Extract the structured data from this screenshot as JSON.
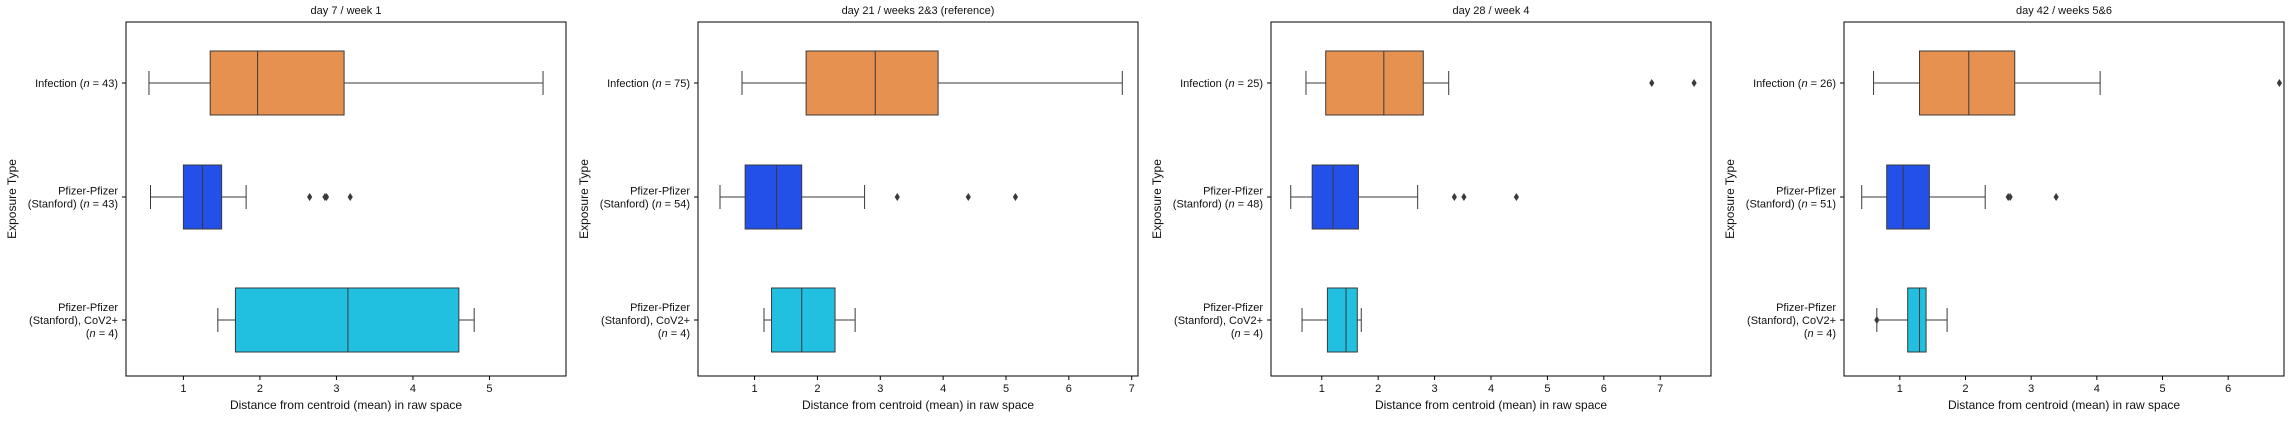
{
  "chart_data": [
    {
      "type": "boxplot",
      "title": "day 7 / week 1",
      "xlabel": "Distance from centroid (mean) in raw space",
      "ylabel": "Exposure Type",
      "xlim": [
        0.25,
        6.0
      ],
      "xticks": [
        1,
        2,
        3,
        4,
        5
      ],
      "categories": [
        {
          "lines": [
            [
              {
                "t": "Infection ("
              },
              {
                "t": "n",
                "i": true
              },
              {
                "t": " = 43)"
              }
            ]
          ]
        },
        {
          "lines": [
            [
              {
                "t": "Pfizer-Pfizer"
              }
            ],
            [
              {
                "t": "(Stanford) ("
              },
              {
                "t": "n",
                "i": true
              },
              {
                "t": " = 43)"
              }
            ]
          ]
        },
        {
          "lines": [
            [
              {
                "t": "Pfizer-Pfizer"
              }
            ],
            [
              {
                "t": "(Stanford), CoV2+"
              }
            ],
            [
              {
                "t": "("
              },
              {
                "t": "n",
                "i": true
              },
              {
                "t": " = 4)"
              }
            ]
          ]
        }
      ],
      "boxes": [
        {
          "color": "#E69150",
          "whislo": 0.55,
          "q1": 1.35,
          "med": 1.97,
          "q3": 3.1,
          "whishi": 5.7,
          "fliers": []
        },
        {
          "color": "#2250E8",
          "whislo": 0.57,
          "q1": 1.0,
          "med": 1.25,
          "q3": 1.5,
          "whishi": 1.82,
          "fliers": [
            2.65,
            2.85,
            2.87,
            3.18
          ]
        },
        {
          "color": "#22C0E0",
          "whislo": 1.45,
          "q1": 1.68,
          "med": 3.15,
          "q3": 4.6,
          "whishi": 4.8,
          "fliers": []
        }
      ]
    },
    {
      "type": "boxplot",
      "title": "day 21 / weeks 2&3 (reference)",
      "xlabel": "Distance from centroid (mean) in raw space",
      "ylabel": "Exposure Type",
      "xlim": [
        0.1,
        7.1
      ],
      "xticks": [
        1,
        2,
        3,
        4,
        5,
        6,
        7
      ],
      "categories": [
        {
          "lines": [
            [
              {
                "t": "Infection ("
              },
              {
                "t": "n",
                "i": true
              },
              {
                "t": " = 75)"
              }
            ]
          ]
        },
        {
          "lines": [
            [
              {
                "t": "Pfizer-Pfizer"
              }
            ],
            [
              {
                "t": "(Stanford) ("
              },
              {
                "t": "n",
                "i": true
              },
              {
                "t": " = 54)"
              }
            ]
          ]
        },
        {
          "lines": [
            [
              {
                "t": "Pfizer-Pfizer"
              }
            ],
            [
              {
                "t": "(Stanford), CoV2+"
              }
            ],
            [
              {
                "t": "("
              },
              {
                "t": "n",
                "i": true
              },
              {
                "t": " = 4)"
              }
            ]
          ]
        }
      ],
      "boxes": [
        {
          "color": "#E69150",
          "whislo": 0.8,
          "q1": 1.82,
          "med": 2.92,
          "q3": 3.92,
          "whishi": 6.85,
          "fliers": []
        },
        {
          "color": "#2250E8",
          "whislo": 0.45,
          "q1": 0.85,
          "med": 1.35,
          "q3": 1.75,
          "whishi": 2.75,
          "fliers": [
            3.27,
            4.4,
            5.15
          ]
        },
        {
          "color": "#22C0E0",
          "whislo": 1.15,
          "q1": 1.27,
          "med": 1.75,
          "q3": 2.28,
          "whishi": 2.6,
          "fliers": []
        }
      ]
    },
    {
      "type": "boxplot",
      "title": "day 28 / week 4",
      "xlabel": "Distance from centroid (mean) in raw space",
      "ylabel": "Exposure Type",
      "xlim": [
        0.1,
        7.9
      ],
      "xticks": [
        1,
        2,
        3,
        4,
        5,
        6,
        7
      ],
      "categories": [
        {
          "lines": [
            [
              {
                "t": "Infection ("
              },
              {
                "t": "n",
                "i": true
              },
              {
                "t": " = 25)"
              }
            ]
          ]
        },
        {
          "lines": [
            [
              {
                "t": "Pfizer-Pfizer"
              }
            ],
            [
              {
                "t": "(Stanford) ("
              },
              {
                "t": "n",
                "i": true
              },
              {
                "t": " = 48)"
              }
            ]
          ]
        },
        {
          "lines": [
            [
              {
                "t": "Pfizer-Pfizer"
              }
            ],
            [
              {
                "t": "(Stanford), CoV2+"
              }
            ],
            [
              {
                "t": "("
              },
              {
                "t": "n",
                "i": true
              },
              {
                "t": " = 4)"
              }
            ]
          ]
        }
      ],
      "boxes": [
        {
          "color": "#E69150",
          "whislo": 0.72,
          "q1": 1.07,
          "med": 2.1,
          "q3": 2.8,
          "whishi": 3.25,
          "fliers": [
            6.85,
            7.6
          ]
        },
        {
          "color": "#2250E8",
          "whislo": 0.45,
          "q1": 0.83,
          "med": 1.2,
          "q3": 1.65,
          "whishi": 2.7,
          "fliers": [
            3.35,
            3.52,
            4.45
          ]
        },
        {
          "color": "#22C0E0",
          "whislo": 0.65,
          "q1": 1.1,
          "med": 1.43,
          "q3": 1.63,
          "whishi": 1.7,
          "fliers": []
        }
      ]
    },
    {
      "type": "boxplot",
      "title": "day 42 / weeks 5&6",
      "xlabel": "Distance from centroid (mean) in raw space",
      "ylabel": "Exposure Type",
      "xlim": [
        0.15,
        6.85
      ],
      "xticks": [
        1,
        2,
        3,
        4,
        5,
        6,
        7
      ],
      "categories": [
        {
          "lines": [
            [
              {
                "t": "Infection ("
              },
              {
                "t": "n",
                "i": true
              },
              {
                "t": " = 26)"
              }
            ]
          ]
        },
        {
          "lines": [
            [
              {
                "t": "Pfizer-Pfizer"
              }
            ],
            [
              {
                "t": "(Stanford) ("
              },
              {
                "t": "n",
                "i": true
              },
              {
                "t": " = 51)"
              }
            ]
          ]
        },
        {
          "lines": [
            [
              {
                "t": "Pfizer-Pfizer"
              }
            ],
            [
              {
                "t": "(Stanford), CoV2+"
              }
            ],
            [
              {
                "t": "("
              },
              {
                "t": "n",
                "i": true
              },
              {
                "t": " = 4)"
              }
            ]
          ]
        }
      ],
      "boxes": [
        {
          "color": "#E69150",
          "whislo": 0.6,
          "q1": 1.3,
          "med": 2.05,
          "q3": 2.75,
          "whishi": 4.05,
          "fliers": [
            6.78
          ]
        },
        {
          "color": "#2250E8",
          "whislo": 0.42,
          "q1": 0.8,
          "med": 1.05,
          "q3": 1.45,
          "whishi": 2.3,
          "fliers": [
            2.65,
            2.68,
            3.38
          ]
        },
        {
          "color": "#22C0E0",
          "whislo": 0.65,
          "q1": 1.12,
          "med": 1.3,
          "q3": 1.4,
          "whishi": 1.72,
          "fliers": [
            0.65
          ]
        }
      ]
    }
  ]
}
